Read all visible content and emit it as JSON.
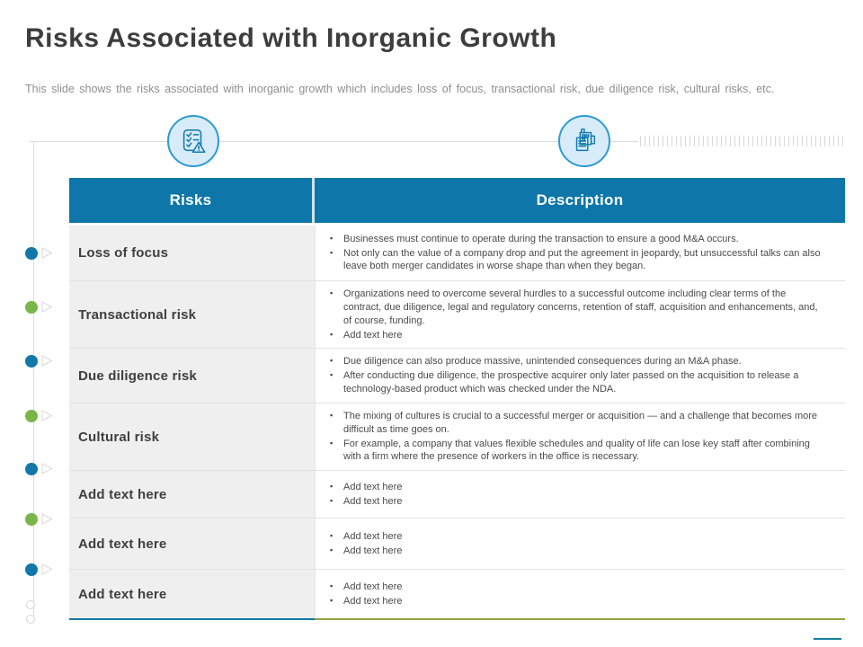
{
  "slide": {
    "title": "Risks Associated with Inorganic Growth",
    "subtitle": "This slide shows the risks associated with inorganic growth which includes loss of focus, transactional risk, due diligence risk, cultural risks, etc."
  },
  "icons": {
    "left": "checklist-warning-icon",
    "right": "building-document-icon"
  },
  "table": {
    "headers": {
      "risk": "Risks",
      "description": "Description"
    },
    "rows": [
      {
        "risk": "Loss of focus",
        "bullets": [
          "Businesses must continue to operate during the transaction to ensure a good M&A occurs.",
          "Not only can the value of a company drop and put the agreement in jeopardy, but unsuccessful talks can also leave both merger candidates in worse shape than when they began."
        ]
      },
      {
        "risk": "Transactional risk",
        "bullets": [
          "Organizations need to overcome several hurdles to a successful outcome including clear terms of the contract, due diligence, legal and regulatory concerns, retention of staff, acquisition and enhancements, and, of course, funding.",
          "Add text here"
        ]
      },
      {
        "risk": "Due diligence risk",
        "bullets": [
          "Due diligence can also produce massive, unintended consequences during an M&A phase.",
          "After conducting due diligence, the prospective acquirer only later passed on the acquisition to release a technology-based product which was checked under the NDA."
        ]
      },
      {
        "risk": "Cultural risk",
        "bullets": [
          "The mixing of cultures is crucial to a successful merger or acquisition — and a challenge that becomes more difficult as time goes on.",
          "For example, a company that values flexible schedules and quality of life can lose key staff after combining with a firm where the presence of workers in the office is necessary."
        ]
      },
      {
        "risk": "Add text here",
        "bullets": [
          "Add text here",
          "Add text here"
        ]
      },
      {
        "risk": "Add text here",
        "bullets": [
          "Add text here",
          "Add text here"
        ]
      },
      {
        "risk": "Add text here",
        "bullets": [
          "Add text here",
          "Add text here"
        ]
      }
    ]
  },
  "rail": {
    "marker_colors": [
      "#1178a9",
      "#7ab54a",
      "#1178a9",
      "#7ab54a",
      "#1178a9",
      "#7ab54a",
      "#1178a9"
    ]
  },
  "colors": {
    "header_blue": "#0e76a8",
    "dot_blue": "#1178a9",
    "dot_green": "#7ab54a",
    "icon_circle_fill": "#d7ecf8",
    "icon_circle_border": "#2d9ad3",
    "bottom_bar_left": "#1178a9",
    "bottom_bar_right": "#97a13f",
    "corner_accent": "#17809e"
  }
}
